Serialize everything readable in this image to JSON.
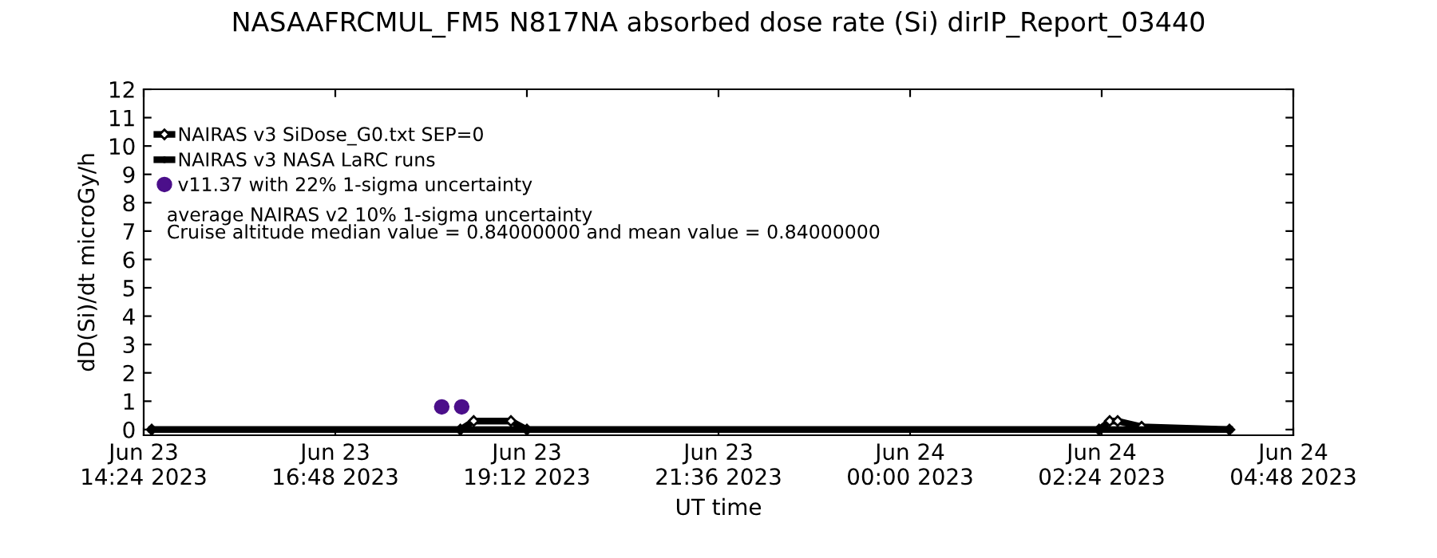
{
  "chart_data": {
    "type": "line",
    "title": "NASAAFRCMUL_FM5 N817NA absorbed dose rate (Si) dirIP_Report_03440",
    "xlabel": "UT time",
    "ylabel": "dD(Si)/dt microGy/h",
    "series": [
      {
        "name": "NAIRAS v3 SiDose_G0.txt SEP=0",
        "color": "#000000",
        "marker": "diamond",
        "x": [
          "2023-06-23T14:30",
          "2023-06-23T18:22",
          "2023-06-23T18:32",
          "2023-06-23T19:00",
          "2023-06-23T19:12",
          "2023-06-24T02:22",
          "2023-06-24T02:30",
          "2023-06-24T02:36",
          "2023-06-24T02:54",
          "2023-06-24T04:00"
        ],
        "values": [
          0,
          0,
          0.3,
          0.3,
          0,
          0,
          0.3,
          0.3,
          0.1,
          0
        ]
      },
      {
        "name": "NAIRAS v3 NASA LaRC runs",
        "color": "#000000",
        "marker": "cross",
        "x": [
          "2023-06-23T14:30",
          "2023-06-24T04:00"
        ],
        "values": [
          0,
          0
        ]
      },
      {
        "name": "v11.37 with 22% 1-sigma uncertainty",
        "color": "#4b0f8a",
        "type": "scatter",
        "marker": "circle",
        "x": [
          "2023-06-23T18:08",
          "2023-06-23T18:23"
        ],
        "values": [
          0.8,
          0.8
        ]
      }
    ],
    "annotations": [
      "average NAIRAS v2 10% 1-sigma uncertainty",
      "Cruise altitude median value = 0.84000000 and mean value = 0.84000000"
    ],
    "xlim": [
      "2023-06-23T14:24",
      "2023-06-24T04:48"
    ],
    "xticks": [
      {
        "value": "2023-06-23T14:24",
        "label": "Jun 23\n14:24 2023"
      },
      {
        "value": "2023-06-23T16:48",
        "label": "Jun 23\n16:48 2023"
      },
      {
        "value": "2023-06-23T19:12",
        "label": "Jun 23\n19:12 2023"
      },
      {
        "value": "2023-06-23T21:36",
        "label": "Jun 23\n21:36 2023"
      },
      {
        "value": "2023-06-24T00:00",
        "label": "Jun 24\n00:00 2023"
      },
      {
        "value": "2023-06-24T02:24",
        "label": "Jun 24\n02:24 2023"
      },
      {
        "value": "2023-06-24T04:48",
        "label": "Jun 24\n04:48 2023"
      }
    ],
    "ylim": [
      -0.2,
      12
    ],
    "yticks": [
      0,
      1,
      2,
      3,
      4,
      5,
      6,
      7,
      8,
      9,
      10,
      11,
      12
    ],
    "legend": "top left",
    "grid": false
  }
}
